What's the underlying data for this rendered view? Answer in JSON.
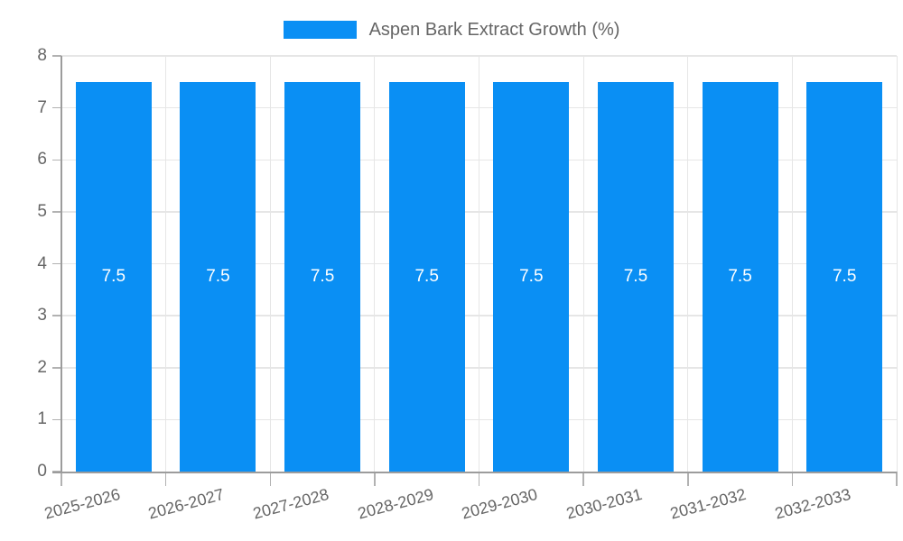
{
  "style": {
    "background": "#ffffff",
    "bar_color": "#0a8ff4",
    "bar_label_color": "#ffffff",
    "axis_text_color": "#666666",
    "grid_color": "#e6e6e6",
    "axis_line_color": "#9c9c9c",
    "tick_color": "#b2b2b2"
  },
  "chart_data": {
    "type": "bar",
    "title": "",
    "legend_position": "top",
    "grid": true,
    "categories": [
      "2025-2026",
      "2026-2027",
      "2027-2028",
      "2028-2029",
      "2029-2030",
      "2030-2031",
      "2031-2032",
      "2032-2033"
    ],
    "series": [
      {
        "name": "Aspen Bark Extract Growth (%)",
        "values": [
          7.5,
          7.5,
          7.5,
          7.5,
          7.5,
          7.5,
          7.5,
          7.5
        ]
      }
    ],
    "bar_value_labels": [
      "7.5",
      "7.5",
      "7.5",
      "7.5",
      "7.5",
      "7.5",
      "7.5",
      "7.5"
    ],
    "xlabel": "",
    "ylabel": "",
    "ylim": [
      0,
      8
    ],
    "yticks": [
      0,
      1,
      2,
      3,
      4,
      5,
      6,
      7,
      8
    ],
    "x_label_rotation_deg": -15
  }
}
